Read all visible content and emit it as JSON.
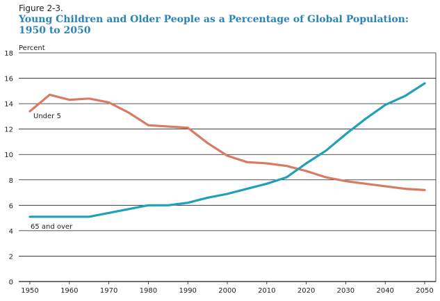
{
  "chart_data": {
    "type": "line",
    "figure_label": "Figure 2-3.",
    "title": "Young Children and Older People as a Percentage of Global Population: 1950 to 2050",
    "title_line1": "Young Children and Older People as a Percentage of Global Population:",
    "title_line2": "1950 to 2050",
    "xlabel": "",
    "ylabel": "Percent",
    "xlim": [
      1950,
      2050
    ],
    "ylim": [
      0,
      18
    ],
    "xticks": [
      1950,
      1960,
      1970,
      1980,
      1990,
      2000,
      2010,
      2020,
      2030,
      2040,
      2050
    ],
    "yticks": [
      0,
      2,
      4,
      6,
      8,
      10,
      12,
      14,
      16,
      18
    ],
    "grid": true,
    "x": [
      1950,
      1955,
      1960,
      1965,
      1970,
      1975,
      1980,
      1985,
      1990,
      1995,
      2000,
      2005,
      2010,
      2015,
      2020,
      2025,
      2030,
      2035,
      2040,
      2045,
      2050
    ],
    "series": [
      {
        "name": "Under 5",
        "color": "#d97b63",
        "values": [
          13.4,
          14.7,
          14.3,
          14.4,
          14.1,
          13.3,
          12.3,
          12.2,
          12.1,
          10.9,
          9.9,
          9.4,
          9.3,
          9.1,
          8.7,
          8.2,
          7.9,
          7.7,
          7.5,
          7.3,
          7.2
        ]
      },
      {
        "name": "65 and over",
        "color": "#1fa0b8",
        "values": [
          5.1,
          5.1,
          5.1,
          5.1,
          5.4,
          5.7,
          6.0,
          6.0,
          6.2,
          6.6,
          6.9,
          7.3,
          7.7,
          8.2,
          9.3,
          10.3,
          11.6,
          12.8,
          13.9,
          14.6,
          15.6
        ]
      }
    ]
  }
}
